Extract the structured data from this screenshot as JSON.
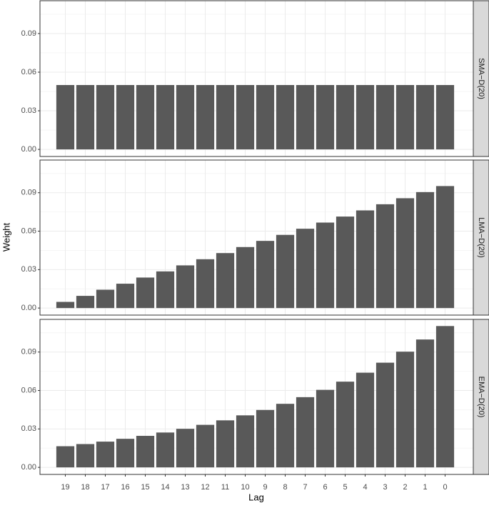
{
  "chart_data": {
    "type": "bar",
    "x_label": "Lag",
    "y_label": "Weight",
    "categories": [
      "19",
      "18",
      "17",
      "16",
      "15",
      "14",
      "13",
      "12",
      "11",
      "10",
      "9",
      "8",
      "7",
      "6",
      "5",
      "4",
      "3",
      "2",
      "1",
      "0"
    ],
    "ylim": [
      -0.0055,
      0.1155
    ],
    "yticks": [
      {
        "value": 0,
        "label": "0.00"
      },
      0.03,
      0.06,
      0.09
    ],
    "grid": true,
    "color": "#595959",
    "facets": [
      {
        "name": "SMA−D(20)",
        "values": [
          0.05,
          0.05,
          0.05,
          0.05,
          0.05,
          0.05,
          0.05,
          0.05,
          0.05,
          0.05,
          0.05,
          0.05,
          0.05,
          0.05,
          0.05,
          0.05,
          0.05,
          0.05,
          0.05,
          0.05
        ]
      },
      {
        "name": "LMA−D(20)",
        "values": [
          0.0048,
          0.0095,
          0.0143,
          0.019,
          0.0238,
          0.0286,
          0.0333,
          0.0381,
          0.0429,
          0.0476,
          0.0524,
          0.0571,
          0.0619,
          0.0667,
          0.0714,
          0.0762,
          0.081,
          0.0857,
          0.0905,
          0.0952
        ]
      },
      {
        "name": "EMA−D(20)",
        "values": [
          0.0165,
          0.0182,
          0.0201,
          0.0223,
          0.0246,
          0.0272,
          0.0301,
          0.0332,
          0.0367,
          0.0406,
          0.0448,
          0.0496,
          0.0548,
          0.0605,
          0.0669,
          0.0739,
          0.0817,
          0.0903,
          0.0998,
          0.1103
        ]
      }
    ]
  }
}
